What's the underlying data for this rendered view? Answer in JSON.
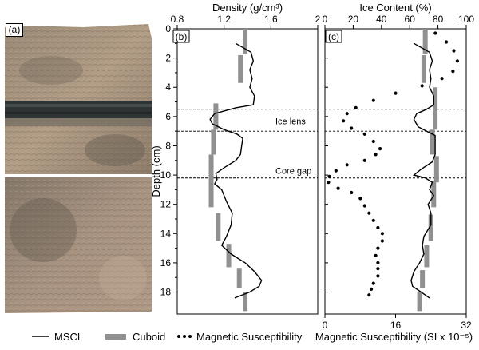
{
  "panels": {
    "a": "(a)",
    "b": "(b)",
    "c": "(c)"
  },
  "chart_data": [
    {
      "panel": "b",
      "type": "line",
      "xlabel": "Density (g/cm³)",
      "ylabel": "Depth (cm)",
      "xlim": [
        0.8,
        2
      ],
      "ylim": [
        0,
        19.5
      ],
      "y_reversed": true,
      "x_ticks": [
        "0.8",
        "1.2",
        "1.6",
        "2"
      ],
      "y_ticks": [
        "0",
        "2",
        "4",
        "6",
        "8",
        "10",
        "12",
        "14",
        "16",
        "18"
      ],
      "series": [
        {
          "name": "MSCL",
          "style": "line",
          "color": "#000000",
          "points": [
            [
              1.3,
              1.0
            ],
            [
              1.43,
              1.6
            ],
            [
              1.45,
              2.2
            ],
            [
              1.42,
              2.8
            ],
            [
              1.44,
              3.4
            ],
            [
              1.42,
              4.0
            ],
            [
              1.46,
              4.6
            ],
            [
              1.45,
              5.2
            ],
            [
              1.3,
              5.4
            ],
            [
              1.12,
              5.8
            ],
            [
              1.08,
              6.2
            ],
            [
              1.1,
              6.5
            ],
            [
              1.2,
              6.9
            ],
            [
              1.31,
              7.2
            ],
            [
              1.36,
              7.5
            ],
            [
              1.35,
              8.0
            ],
            [
              1.34,
              8.6
            ],
            [
              1.3,
              9.0
            ],
            [
              1.2,
              9.5
            ],
            [
              1.13,
              9.9
            ],
            [
              1.14,
              10.3
            ],
            [
              1.12,
              10.6
            ],
            [
              1.18,
              11.0
            ],
            [
              1.22,
              11.8
            ],
            [
              1.27,
              12.6
            ],
            [
              1.26,
              13.4
            ],
            [
              1.22,
              14.2
            ],
            [
              1.18,
              14.8
            ],
            [
              1.26,
              15.4
            ],
            [
              1.38,
              16.0
            ],
            [
              1.46,
              16.6
            ],
            [
              1.52,
              17.2
            ],
            [
              1.5,
              17.6
            ],
            [
              1.42,
              18.0
            ],
            [
              1.29,
              18.4
            ]
          ]
        },
        {
          "name": "Cuboid",
          "style": "segments",
          "color": "#909090",
          "segments": [
            [
              1.38,
              0.0,
              1.7
            ],
            [
              1.34,
              1.8,
              3.7
            ],
            [
              1.13,
              5.1,
              6.9
            ],
            [
              1.11,
              6.9,
              8.6
            ],
            [
              1.09,
              8.6,
              10.4
            ],
            [
              1.09,
              10.4,
              12.2
            ],
            [
              1.15,
              12.6,
              14.5
            ],
            [
              1.24,
              14.7,
              16.3
            ],
            [
              1.33,
              16.4,
              17.7
            ],
            [
              1.38,
              18.0,
              19.3
            ]
          ]
        }
      ],
      "annotations": [
        {
          "text": "Ice lens",
          "depth": 6.3
        },
        {
          "text": "Core gap",
          "depth": 9.7
        }
      ],
      "reference_lines_depth": [
        5.5,
        7.0,
        10.2
      ]
    },
    {
      "panel": "c",
      "type": "line",
      "xlabel_top": "Ice Content (%)",
      "xlabel_bottom": "Magnetic Susceptibility (SI x 10⁻⁵)",
      "ylim": [
        0,
        19.5
      ],
      "y_reversed": true,
      "x_top_lim": [
        0,
        100
      ],
      "x_top_ticks": [
        "0",
        "20",
        "40",
        "60",
        "80",
        "100"
      ],
      "x_bottom_lim": [
        0,
        32
      ],
      "x_bottom_ticks": [
        "0",
        "16",
        "32"
      ],
      "series": [
        {
          "name": "MSCL",
          "style": "line",
          "axis": "top",
          "color": "#000000",
          "points": [
            [
              63,
              1.0
            ],
            [
              74,
              1.6
            ],
            [
              76,
              2.2
            ],
            [
              74,
              2.8
            ],
            [
              75,
              3.4
            ],
            [
              74,
              4.0
            ],
            [
              77,
              4.6
            ],
            [
              77,
              5.2
            ],
            [
              72,
              5.5
            ],
            [
              65,
              5.8
            ],
            [
              63,
              6.2
            ],
            [
              66,
              6.7
            ],
            [
              72,
              7.0
            ],
            [
              78,
              7.3
            ],
            [
              78,
              8.0
            ],
            [
              78,
              8.6
            ],
            [
              76,
              9.1
            ],
            [
              68,
              9.6
            ],
            [
              63,
              10.0
            ],
            [
              71,
              10.2
            ],
            [
              76,
              10.5
            ],
            [
              74,
              11.0
            ],
            [
              77,
              11.4
            ],
            [
              73,
              12.0
            ],
            [
              75,
              12.6
            ],
            [
              75,
              13.4
            ],
            [
              70,
              14.2
            ],
            [
              69,
              14.8
            ],
            [
              70,
              15.4
            ],
            [
              67,
              16.0
            ],
            [
              63,
              16.6
            ],
            [
              61,
              17.2
            ],
            [
              62,
              17.6
            ],
            [
              68,
              18.0
            ],
            [
              74,
              18.4
            ]
          ]
        },
        {
          "name": "Cuboid",
          "style": "segments",
          "axis": "top",
          "color": "#909090",
          "segments": [
            [
              71,
              0.0,
              1.7
            ],
            [
              70,
              1.8,
              3.7
            ],
            [
              78,
              4.0,
              6.9
            ],
            [
              76,
              6.9,
              8.6
            ],
            [
              79,
              8.7,
              10.5
            ],
            [
              77,
              10.4,
              12.2
            ],
            [
              75,
              12.7,
              14.5
            ],
            [
              72,
              14.8,
              16.3
            ],
            [
              69,
              16.5,
              17.7
            ],
            [
              67,
              18.0,
              19.3
            ]
          ]
        },
        {
          "name": "Magnetic Susceptibility",
          "style": "dotted",
          "axis": "bottom",
          "color": "#000000",
          "points": [
            [
              25,
              0.3
            ],
            [
              27.5,
              0.9
            ],
            [
              29.2,
              1.5
            ],
            [
              30,
              2.2
            ],
            [
              29,
              2.9
            ],
            [
              26.5,
              3.4
            ],
            [
              22,
              3.9
            ],
            [
              16,
              4.4
            ],
            [
              11,
              4.9
            ],
            [
              7,
              5.4
            ],
            [
              5,
              5.8
            ],
            [
              4.2,
              6.3
            ],
            [
              6,
              6.8
            ],
            [
              9,
              7.2
            ],
            [
              11,
              7.7
            ],
            [
              12.5,
              8.2
            ],
            [
              11.5,
              8.6
            ],
            [
              9,
              9.0
            ],
            [
              5,
              9.3
            ],
            [
              2.5,
              9.7
            ],
            [
              1,
              10.1
            ],
            [
              0.8,
              10.5
            ],
            [
              3,
              10.9
            ],
            [
              6,
              11.2
            ],
            [
              8,
              11.6
            ],
            [
              9,
              12.1
            ],
            [
              10,
              12.6
            ],
            [
              11,
              13.1
            ],
            [
              12,
              13.6
            ],
            [
              13,
              14.0
            ],
            [
              13,
              14.5
            ],
            [
              12,
              15.0
            ],
            [
              11.5,
              15.5
            ],
            [
              12,
              16.0
            ],
            [
              12,
              16.4
            ],
            [
              12,
              16.9
            ],
            [
              11,
              17.4
            ],
            [
              10.5,
              17.8
            ],
            [
              10,
              18.2
            ]
          ]
        }
      ],
      "reference_lines_depth": [
        5.5,
        7.0,
        10.2
      ]
    }
  ],
  "legend": {
    "items": [
      {
        "label": "MSCL",
        "style": "line"
      },
      {
        "label": "Cuboid",
        "style": "bar"
      },
      {
        "label": "Magnetic Susceptibility",
        "style": "dots"
      }
    ],
    "colors": {
      "line": "#000000",
      "bar": "#909090",
      "dots": "#000000"
    }
  }
}
